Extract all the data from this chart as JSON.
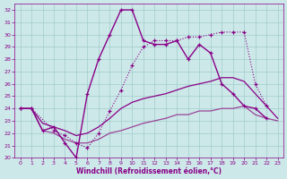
{
  "xlabel": "Windchill (Refroidissement éolien,°C)",
  "xlim": [
    -0.5,
    23.5
  ],
  "ylim": [
    20,
    32.5
  ],
  "yticks": [
    20,
    21,
    22,
    23,
    24,
    25,
    26,
    27,
    28,
    29,
    30,
    31,
    32
  ],
  "xticks": [
    0,
    1,
    2,
    3,
    4,
    5,
    6,
    7,
    8,
    9,
    10,
    11,
    12,
    13,
    14,
    15,
    16,
    17,
    18,
    19,
    20,
    21,
    22,
    23
  ],
  "bg_color": "#cde8e8",
  "grid_color": "#a0cccc",
  "line_color": "#880088",
  "series": [
    {
      "x": [
        0,
        1,
        3,
        4,
        5,
        6,
        7,
        8,
        9,
        10,
        11,
        12,
        13,
        14,
        15,
        16,
        17,
        18,
        19,
        20,
        21,
        22
      ],
      "y": [
        24.0,
        24.0,
        22.2,
        21.8,
        21.2,
        20.8,
        22.0,
        23.8,
        25.5,
        27.5,
        29.0,
        29.5,
        29.5,
        29.5,
        29.8,
        29.8,
        30.0,
        30.2,
        30.2,
        30.2,
        26.0,
        24.2
      ],
      "style": "dotted_marker",
      "color": "#880088",
      "linewidth": 0.8,
      "linestyle": "dotted"
    },
    {
      "x": [
        0,
        1,
        2,
        3,
        4,
        5,
        6,
        7,
        8,
        9,
        10,
        11,
        12,
        13,
        14,
        15,
        16,
        17,
        18,
        19,
        20,
        21,
        22
      ],
      "y": [
        24.0,
        24.0,
        22.2,
        22.5,
        21.2,
        20.0,
        25.2,
        28.0,
        30.0,
        32.0,
        32.0,
        29.5,
        29.2,
        29.2,
        29.5,
        28.0,
        29.2,
        28.5,
        26.0,
        25.2,
        24.2,
        24.0,
        23.2
      ],
      "style": "solid_marker",
      "color": "#880088",
      "linewidth": 1.0,
      "linestyle": "solid"
    },
    {
      "x": [
        0,
        1,
        2,
        3,
        4,
        5,
        6,
        7,
        8,
        9,
        10,
        11,
        12,
        13,
        14,
        15,
        16,
        17,
        18,
        19,
        20,
        21,
        22,
        23
      ],
      "y": [
        24.0,
        24.0,
        22.8,
        22.5,
        22.2,
        21.8,
        22.0,
        22.5,
        23.2,
        24.0,
        24.5,
        24.8,
        25.0,
        25.2,
        25.5,
        25.8,
        26.0,
        26.2,
        26.5,
        26.5,
        26.2,
        25.2,
        24.2,
        23.2
      ],
      "style": "smooth",
      "color": "#880088",
      "linewidth": 0.9,
      "linestyle": "solid"
    },
    {
      "x": [
        0,
        1,
        2,
        3,
        4,
        5,
        6,
        7,
        8,
        9,
        10,
        11,
        12,
        13,
        14,
        15,
        16,
        17,
        18,
        19,
        20,
        21,
        22,
        23
      ],
      "y": [
        24.0,
        24.0,
        22.2,
        22.0,
        21.5,
        21.2,
        21.2,
        21.5,
        22.0,
        22.2,
        22.5,
        22.8,
        23.0,
        23.2,
        23.5,
        23.5,
        23.8,
        23.8,
        24.0,
        24.0,
        24.2,
        23.5,
        23.2,
        23.0
      ],
      "style": "smooth",
      "color": "#994499",
      "linewidth": 0.9,
      "linestyle": "solid"
    }
  ]
}
